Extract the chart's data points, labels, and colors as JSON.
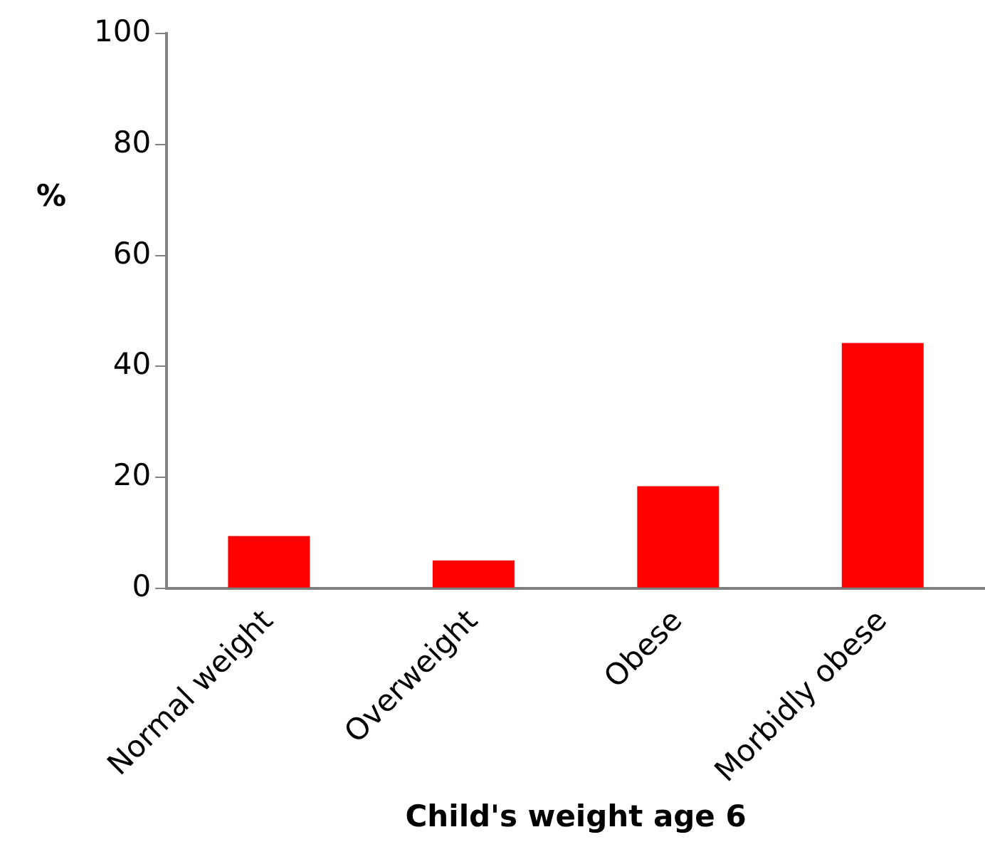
{
  "chart_data": {
    "type": "bar",
    "xlabel": "Child's weight age 6",
    "ylabel": "%",
    "categories": [
      "Normal weight",
      "Overweight",
      "Obese",
      "Morbidly obese"
    ],
    "values": [
      9.4,
      5.0,
      18.4,
      44.2
    ],
    "color": "#ff0000",
    "ylim": [
      0,
      100
    ],
    "yticks": [
      0,
      20,
      40,
      60,
      80,
      100
    ],
    "grid": false,
    "legend": false
  }
}
